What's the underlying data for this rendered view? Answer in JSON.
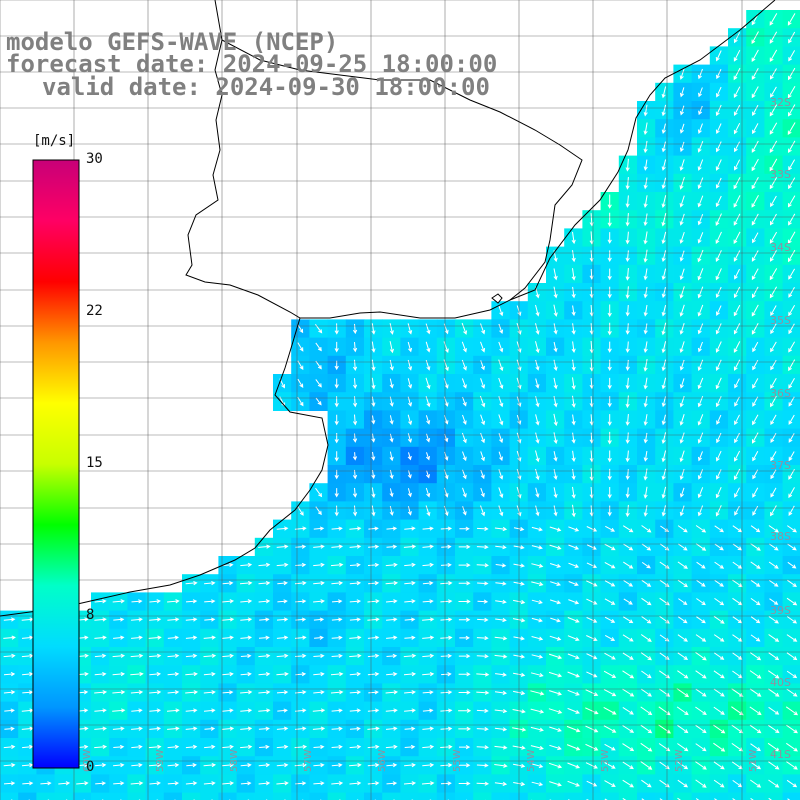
{
  "title": {
    "model": "modelo GEFS-WAVE (NCEP)",
    "forecast": "forecast date: 2024-09-25 18:00:00",
    "valid": "valid date: 2024-09-30 18:00:00"
  },
  "colorbar": {
    "unit": "[m/s]",
    "ticks": [
      "30",
      "22",
      "15",
      "8",
      "0"
    ],
    "tick_values": [
      30,
      22,
      15,
      8,
      0
    ],
    "range": [
      0,
      30
    ],
    "stops": [
      "#0000ff",
      "#0096ff",
      "#00dcff",
      "#00ffc8",
      "#00ff00",
      "#c8ff00",
      "#ffff00",
      "#ff9600",
      "#ff0000",
      "#ff0064",
      "#c80078"
    ]
  },
  "grid": {
    "lat_labels": [
      "32S",
      "33S",
      "34S",
      "35S",
      "36S",
      "37S",
      "38S",
      "39S",
      "40S",
      "41S"
    ],
    "lon_labels": [
      "60W",
      "59W",
      "58W",
      "57W",
      "56W",
      "55W",
      "54W",
      "53W",
      "52W",
      "51W"
    ]
  },
  "field": {
    "variable": "wind speed",
    "pattern": "weak winds (0-8 m/s) near the coast and Rio de la Plata estuary, stronger winds (10-13 m/s) offshore to the south-east and north-east"
  }
}
